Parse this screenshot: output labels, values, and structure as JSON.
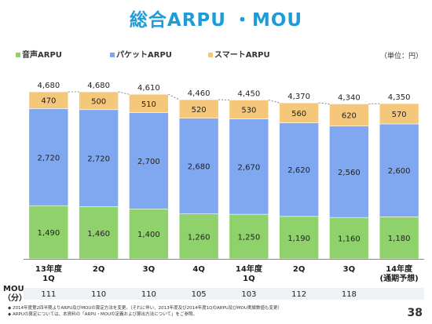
{
  "slide": {
    "title": "総合ARPU ・MOU",
    "unit": "（単位：円）",
    "page_number": "38",
    "mou_label_line1": "MOU",
    "mou_label_line2": "（分）",
    "footnotes": [
      "◆ 2014年度第2四半期よりARPU及びMOUの算定方法を変更。（それに伴い、2013年度及び2014年度1QのARPU及びMOU実績数値も変更）",
      "◆ ARPUの算定については、本資料の「ARPU・MOUの定義および算出方法について」をご参照。"
    ]
  },
  "legend": [
    {
      "label": "音声ARPU",
      "color": "#8fd16a"
    },
    {
      "label": "パケットARPU",
      "color": "#7fa8f0"
    },
    {
      "label": "スマートARPU",
      "color": "#f5c77a"
    }
  ],
  "chart_data": {
    "type": "bar",
    "stacked": true,
    "categories": [
      "13年度\n1Q",
      "2Q",
      "3Q",
      "4Q",
      "14年度\n1Q",
      "2Q",
      "3Q",
      "14年度\n(通期予想)"
    ],
    "series": [
      {
        "name": "音声ARPU",
        "color": "#8fd16a",
        "values": [
          1490,
          1460,
          1400,
          1260,
          1250,
          1190,
          1160,
          1180
        ]
      },
      {
        "name": "パケットARPU",
        "color": "#7fa8f0",
        "values": [
          2720,
          2720,
          2700,
          2680,
          2670,
          2620,
          2560,
          2600
        ]
      },
      {
        "name": "スマートARPU",
        "color": "#f5c77a",
        "values": [
          470,
          500,
          510,
          520,
          530,
          560,
          620,
          570
        ]
      }
    ],
    "totals": [
      4680,
      4680,
      4610,
      4460,
      4450,
      4370,
      4340,
      4350
    ],
    "value_labels": {
      "voice": [
        "1,490",
        "1,460",
        "1,400",
        "1,260",
        "1,250",
        "1,190",
        "1,160",
        "1,180"
      ],
      "packet": [
        "2,720",
        "2,720",
        "2,700",
        "2,680",
        "2,670",
        "2,620",
        "2,560",
        "2,600"
      ],
      "smart": [
        "470",
        "500",
        "510",
        "520",
        "530",
        "560",
        "620",
        "570"
      ],
      "totals": [
        "4,680",
        "4,680",
        "4,610",
        "4,460",
        "4,450",
        "4,370",
        "4,340",
        "4,350"
      ]
    },
    "mou_values": [
      "111",
      "110",
      "110",
      "105",
      "103",
      "112",
      "118",
      ""
    ],
    "ylim": [
      0,
      4680
    ],
    "legend_position": "top-left"
  }
}
